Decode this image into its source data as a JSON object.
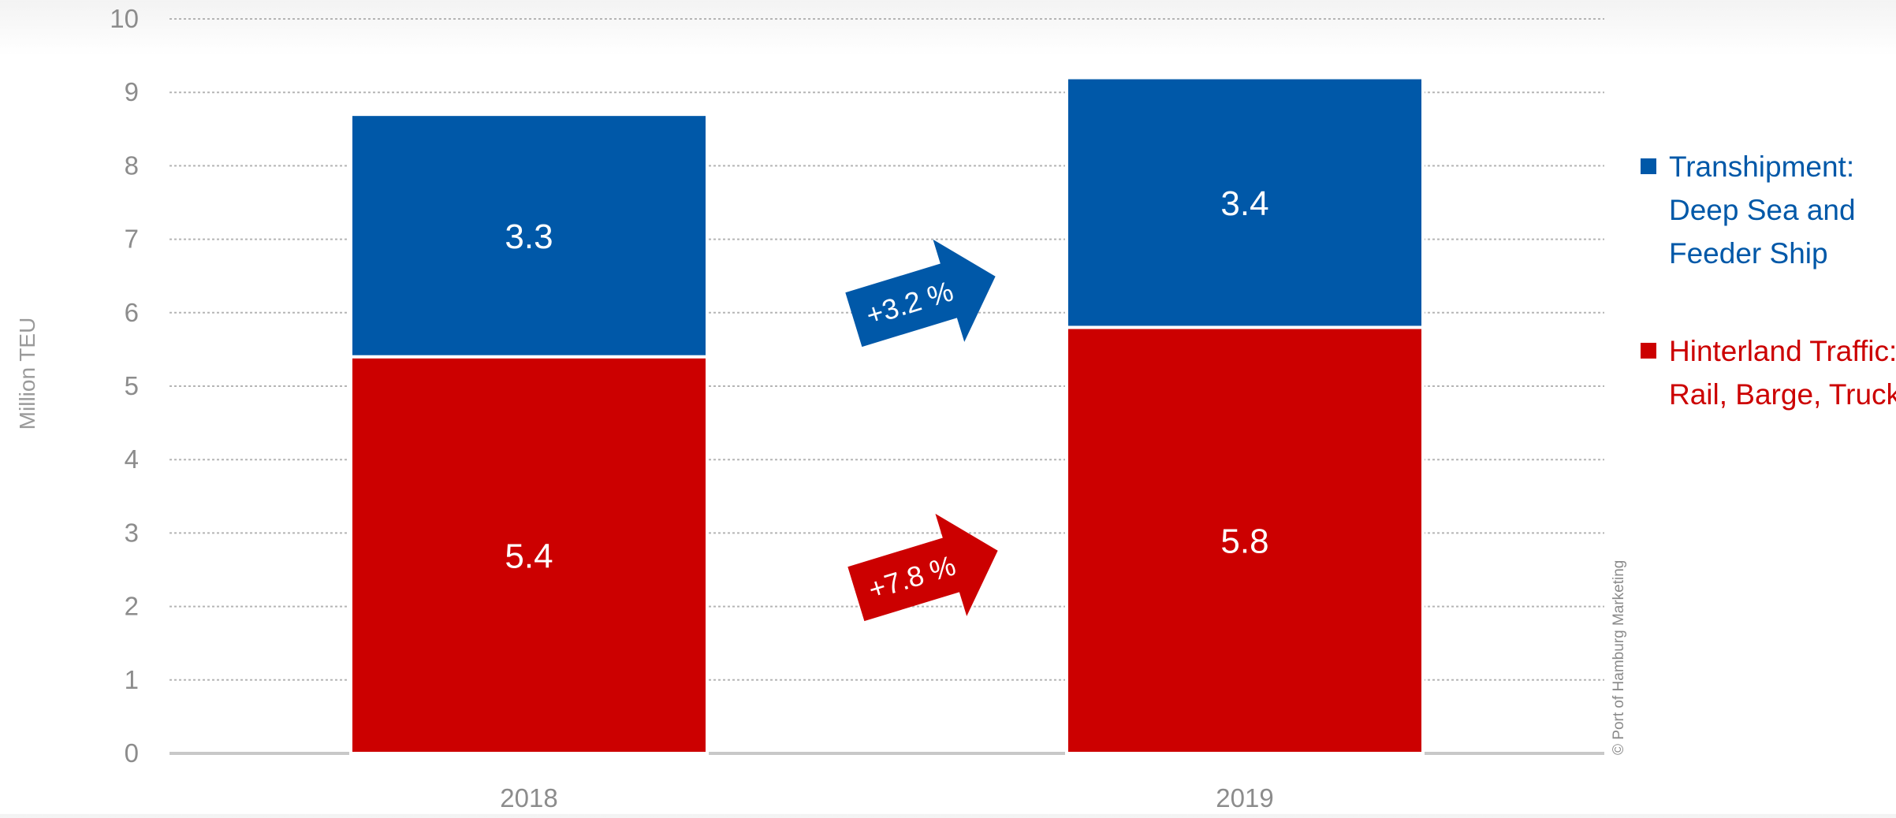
{
  "chart_data": {
    "type": "bar",
    "stacked": true,
    "categories": [
      "2018",
      "2019"
    ],
    "series": [
      {
        "name": "Hinterland Traffic: Rail, Barge, Truck",
        "legend_lines": [
          "Hinterland Traffic:",
          "Rail, Barge, Truck"
        ],
        "values": [
          5.4,
          5.8
        ],
        "color": "#cc0000"
      },
      {
        "name": "Transhipment: Deep Sea and Feeder Ship",
        "legend_lines": [
          "Transhipment:",
          "Deep Sea and",
          "Feeder Ship"
        ],
        "values": [
          3.3,
          3.4
        ],
        "color": "#0058a8"
      }
    ],
    "data_labels": [
      [
        "5.4",
        "5.8"
      ],
      [
        "3.3",
        "3.4"
      ]
    ],
    "ylabel": "Million TEU",
    "ylim": [
      0,
      10
    ],
    "yticks": [
      0,
      1,
      2,
      3,
      4,
      5,
      6,
      7,
      8,
      9,
      10
    ],
    "grid": true,
    "legend_position": "right",
    "annotations": [
      {
        "text": "+3.2 %",
        "color": "#0058a8",
        "series": "Transhipment: Deep Sea and Feeder Ship"
      },
      {
        "text": "+7.8 %",
        "color": "#cc0000",
        "series": "Hinterland Traffic: Rail, Barge, Truck"
      }
    ],
    "credit": "© Port of Hamburg Marketing"
  }
}
